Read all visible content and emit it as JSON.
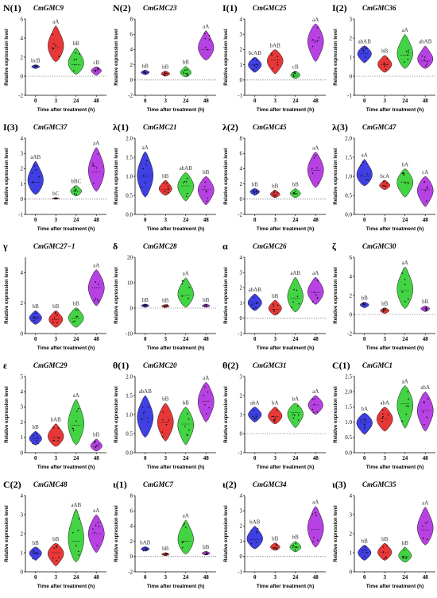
{
  "chart_data": [
    {
      "type": "violin",
      "panel": "N(1)",
      "gene": "CmGMC9",
      "ylim": [
        -2,
        6
      ],
      "yticks": [
        -2,
        0,
        2,
        4,
        6
      ],
      "x": [
        "0",
        "3",
        "24",
        "48"
      ],
      "xlabel": "Time after treatment (h)",
      "ylabel": "Relative expression level",
      "medians": [
        1.0,
        3.0,
        1.2,
        0.6
      ],
      "ranges": [
        [
          0.8,
          1.2
        ],
        [
          1.5,
          5.3
        ],
        [
          0.2,
          3.0
        ],
        [
          0.1,
          1.0
        ]
      ],
      "letters": [
        "bcB",
        "aA",
        "bB",
        "cB"
      ]
    },
    {
      "type": "violin",
      "panel": "N(2)",
      "gene": "CmGMC23",
      "ylim": [
        -2,
        8
      ],
      "yticks": [
        -2,
        0,
        2,
        4,
        6,
        8
      ],
      "x": [
        "0",
        "3",
        "24",
        "48"
      ],
      "xlabel": "Time after treatment (h)",
      "ylabel": "Relative expression level",
      "medians": [
        1.0,
        0.8,
        0.9,
        4.0
      ],
      "ranges": [
        [
          0.7,
          1.3
        ],
        [
          0.5,
          1.2
        ],
        [
          0.4,
          1.8
        ],
        [
          2.6,
          6.5
        ]
      ],
      "letters": [
        "bB",
        "bB",
        "bB",
        "aA"
      ]
    },
    {
      "type": "violin",
      "panel": "I(1)",
      "gene": "CmGMC25",
      "ylim": [
        -1,
        4
      ],
      "yticks": [
        -1,
        0,
        1,
        2,
        3,
        4
      ],
      "x": [
        "0",
        "3",
        "24",
        "48"
      ],
      "xlabel": "Time after treatment (h)",
      "ylabel": "Relative expression level",
      "medians": [
        1.0,
        1.3,
        0.3,
        2.6
      ],
      "ranges": [
        [
          0.5,
          1.5
        ],
        [
          0.4,
          2.0
        ],
        [
          0.1,
          0.6
        ],
        [
          1.2,
          3.7
        ]
      ],
      "letters": [
        "bcAB",
        "bAB",
        "cB",
        "aA"
      ]
    },
    {
      "type": "violin",
      "panel": "I(2)",
      "gene": "CmGMC36",
      "ylim": [
        -1,
        3
      ],
      "yticks": [
        -1,
        0,
        1,
        2,
        3
      ],
      "x": [
        "0",
        "3",
        "24",
        "48"
      ],
      "xlabel": "Time after treatment (h)",
      "ylabel": "Relative expression level",
      "medians": [
        1.2,
        0.6,
        1.1,
        0.8
      ],
      "ranges": [
        [
          0.7,
          1.6
        ],
        [
          0.2,
          1.1
        ],
        [
          0.4,
          2.2
        ],
        [
          0.4,
          1.6
        ]
      ],
      "letters": [
        "abAB",
        "bB",
        "aA",
        "abAB"
      ]
    },
    {
      "type": "violin",
      "panel": "I(3)",
      "gene": "CmGMC37",
      "ylim": [
        -1,
        4
      ],
      "yticks": [
        -1,
        0,
        1,
        2,
        3,
        4
      ],
      "x": [
        "0",
        "3",
        "24",
        "48"
      ],
      "xlabel": "Time after treatment (h)",
      "ylabel": "Relative expression level",
      "medians": [
        1.1,
        0.05,
        0.5,
        1.8
      ],
      "ranges": [
        [
          0.3,
          2.5
        ],
        [
          0,
          0.1
        ],
        [
          0.2,
          0.9
        ],
        [
          0.5,
          3.4
        ]
      ],
      "letters": [
        "aAB",
        "bC",
        "bBC",
        "aA"
      ]
    },
    {
      "type": "violin",
      "panel": "λ(1)",
      "gene": "CmGMC21",
      "ylim": [
        0,
        2.0
      ],
      "yticks": [
        "0.0",
        "0.5",
        "1.0",
        "1.5",
        "2.0"
      ],
      "x": [
        "0",
        "3",
        "24",
        "48"
      ],
      "xlabel": "Time after treatment (h)",
      "ylabel": "Relative expression level",
      "medians": [
        1.0,
        0.65,
        0.75,
        0.65
      ],
      "ranges": [
        [
          0.45,
          1.65
        ],
        [
          0.5,
          0.9
        ],
        [
          0.35,
          1.1
        ],
        [
          0.25,
          1.0
        ]
      ],
      "letters": [
        "aA",
        "bB",
        "abAB",
        "bB"
      ]
    },
    {
      "type": "violin",
      "panel": "λ(2)",
      "gene": "CmGMC45",
      "ylim": [
        -2,
        8
      ],
      "yticks": [
        -2,
        0,
        2,
        4,
        6,
        8
      ],
      "x": [
        "0",
        "3",
        "24",
        "48"
      ],
      "xlabel": "Time after treatment (h)",
      "ylabel": "Relative expression level",
      "medians": [
        1.0,
        0.6,
        0.7,
        3.8
      ],
      "ranges": [
        [
          0.5,
          1.4
        ],
        [
          0.2,
          1.2
        ],
        [
          0.2,
          1.4
        ],
        [
          1.5,
          6.2
        ]
      ],
      "letters": [
        "bB",
        "bB",
        "bB",
        "aA"
      ]
    },
    {
      "type": "violin",
      "panel": "λ(3)",
      "gene": "CmGMC47",
      "ylim": [
        0,
        2.0
      ],
      "yticks": [
        "0.0",
        "0.5",
        "1.0",
        "1.5",
        "2.0"
      ],
      "x": [
        "0",
        "3",
        "24",
        "48"
      ],
      "xlabel": "Time after treatment (h)",
      "ylabel": "Relative expression level",
      "medians": [
        1.0,
        0.75,
        0.85,
        0.65
      ],
      "ranges": [
        [
          0.75,
          1.45
        ],
        [
          0.65,
          0.9
        ],
        [
          0.45,
          1.2
        ],
        [
          0.2,
          1.0
        ]
      ],
      "letters": [
        "aA",
        "bcA",
        "bA",
        "cA"
      ]
    },
    {
      "type": "violin",
      "panel": "γ",
      "gene": "CmGMC27−1",
      "ylim": [
        0,
        5
      ],
      "yticks": [
        0,
        2,
        4
      ],
      "x": [
        "0",
        "3",
        "24",
        "48"
      ],
      "xlabel": "Time after treatment (h)",
      "ylabel": "Relative expression level",
      "medians": [
        1.0,
        0.9,
        1.0,
        3.0
      ],
      "ranges": [
        [
          0.6,
          1.5
        ],
        [
          0.4,
          1.5
        ],
        [
          0.4,
          1.7
        ],
        [
          1.8,
          4.2
        ]
      ],
      "letters": [
        "bB",
        "bB",
        "bB",
        "aA"
      ]
    },
    {
      "type": "violin",
      "panel": "δ",
      "gene": "CmGMC28",
      "ylim": [
        -10,
        20
      ],
      "yticks": [
        -10,
        0,
        10,
        20
      ],
      "x": [
        "0",
        "3",
        "24",
        "48"
      ],
      "xlabel": "Time after treatment (h)",
      "ylabel": "Relative expression level",
      "medians": [
        1.0,
        0.8,
        5.0,
        0.9
      ],
      "ranges": [
        [
          0.3,
          1.6
        ],
        [
          0.2,
          1.4
        ],
        [
          0.3,
          12.0
        ],
        [
          0.3,
          1.6
        ]
      ],
      "letters": [
        "bB",
        "bB",
        "aA",
        "bB"
      ]
    },
    {
      "type": "violin",
      "panel": "α",
      "gene": "CmGMC26",
      "ylim": [
        -1,
        4
      ],
      "yticks": [
        -1,
        0,
        1,
        2,
        3,
        4
      ],
      "x": [
        "0",
        "3",
        "24",
        "48"
      ],
      "xlabel": "Time after treatment (h)",
      "ylabel": "Relative expression level",
      "medians": [
        1.0,
        0.6,
        1.3,
        1.7
      ],
      "ranges": [
        [
          0.5,
          1.6
        ],
        [
          0.2,
          1.2
        ],
        [
          0.4,
          2.7
        ],
        [
          0.9,
          2.7
        ]
      ],
      "letters": [
        "abAB",
        "bB",
        "aAB",
        "aA"
      ]
    },
    {
      "type": "violin",
      "panel": "ζ",
      "gene": "CmGMC30",
      "ylim": [
        -2,
        6
      ],
      "yticks": [
        -2,
        0,
        2,
        4,
        6
      ],
      "x": [
        "0",
        "3",
        "24",
        "48"
      ],
      "xlabel": "Time after treatment (h)",
      "ylabel": "Relative expression level",
      "medians": [
        1.0,
        0.4,
        2.5,
        0.6
      ],
      "ranges": [
        [
          0.7,
          1.3
        ],
        [
          0.1,
          0.7
        ],
        [
          0.6,
          5.0
        ],
        [
          0.3,
          0.9
        ]
      ],
      "letters": [
        "bB",
        "bB",
        "aA",
        "bB"
      ]
    },
    {
      "type": "violin",
      "panel": "ε",
      "gene": "CmGMC29",
      "ylim": [
        0,
        5
      ],
      "yticks": [
        0,
        1,
        2,
        3,
        4,
        5
      ],
      "x": [
        "0",
        "3",
        "24",
        "48"
      ],
      "xlabel": "Time after treatment (h)",
      "ylabel": "Relative expression level",
      "medians": [
        0.9,
        1.0,
        1.8,
        0.4
      ],
      "ranges": [
        [
          0.5,
          1.4
        ],
        [
          0.4,
          1.9
        ],
        [
          0.5,
          3.5
        ],
        [
          0.1,
          0.9
        ]
      ],
      "letters": [
        "bB",
        "bAB",
        "aA",
        "bB"
      ]
    },
    {
      "type": "violin",
      "panel": "θ(1)",
      "gene": "CmGMC20",
      "ylim": [
        0,
        2.0
      ],
      "yticks": [
        "0.0",
        "0.5",
        "1.0",
        "1.5",
        "2.0"
      ],
      "x": [
        "0",
        "3",
        "24",
        "48"
      ],
      "xlabel": "Time after treatment (h)",
      "ylabel": "Relative expression level",
      "medians": [
        0.9,
        0.8,
        0.75,
        1.35
      ],
      "ranges": [
        [
          0.4,
          1.5
        ],
        [
          0.3,
          1.3
        ],
        [
          0.2,
          1.2
        ],
        [
          0.8,
          1.85
        ]
      ],
      "letters": [
        "abAB",
        "bB",
        "bB",
        "aA"
      ]
    },
    {
      "type": "violin",
      "panel": "θ(2)",
      "gene": "CmGMC31",
      "ylim": [
        -1,
        3
      ],
      "yticks": [
        -1,
        0,
        1,
        2,
        3
      ],
      "x": [
        "0",
        "3",
        "24",
        "48"
      ],
      "xlabel": "Time after treatment (h)",
      "ylabel": "Relative expression level",
      "medians": [
        1.0,
        0.9,
        1.1,
        1.5
      ],
      "ranges": [
        [
          0.6,
          1.4
        ],
        [
          0.5,
          1.4
        ],
        [
          0.3,
          1.6
        ],
        [
          1.0,
          2.0
        ]
      ],
      "letters": [
        "abA",
        "bA",
        "bA",
        "aA"
      ]
    },
    {
      "type": "violin",
      "panel": "C(1)",
      "gene": "CmGMC1",
      "ylim": [
        0,
        2.5
      ],
      "yticks": [
        "0.0",
        "0.5",
        "1.0",
        "1.5",
        "2.0",
        "2.5"
      ],
      "x": [
        "0",
        "3",
        "24",
        "48"
      ],
      "xlabel": "Time after treatment (h)",
      "ylabel": "Relative expression level",
      "medians": [
        1.0,
        1.1,
        1.6,
        1.4
      ],
      "ranges": [
        [
          0.6,
          1.3
        ],
        [
          0.7,
          1.5
        ],
        [
          0.8,
          2.2
        ],
        [
          0.7,
          2.0
        ]
      ],
      "letters": [
        "bA",
        "abA",
        "aA",
        "abA"
      ]
    },
    {
      "type": "violin",
      "panel": "C(2)",
      "gene": "CmGMC48",
      "ylim": [
        0,
        4
      ],
      "yticks": [
        0,
        1,
        2,
        3,
        4
      ],
      "x": [
        "0",
        "3",
        "24",
        "48"
      ],
      "xlabel": "Time after treatment (h)",
      "ylabel": "Relative expression level",
      "medians": [
        1.0,
        1.0,
        1.6,
        2.0
      ],
      "ranges": [
        [
          0.6,
          1.3
        ],
        [
          0.3,
          1.5
        ],
        [
          0.5,
          3.3
        ],
        [
          1.0,
          3.0
        ]
      ],
      "letters": [
        "bB",
        "bB",
        "aAB",
        "aA"
      ]
    },
    {
      "type": "violin",
      "panel": "ι(1)",
      "gene": "CmGMC7",
      "ylim": [
        -2,
        8
      ],
      "yticks": [
        -2,
        0,
        2,
        4,
        6,
        8
      ],
      "x": [
        "0",
        "3",
        "24",
        "48"
      ],
      "xlabel": "Time after treatment (h)",
      "ylabel": "Relative expression level",
      "medians": [
        1.0,
        0.3,
        2.0,
        0.4
      ],
      "ranges": [
        [
          0.7,
          1.3
        ],
        [
          0.1,
          0.5
        ],
        [
          0.3,
          4.8
        ],
        [
          0.2,
          0.7
        ]
      ],
      "letters": [
        "bAB",
        "bB",
        "aA",
        "bB"
      ]
    },
    {
      "type": "violin",
      "panel": "ι(2)",
      "gene": "CmGMC34",
      "ylim": [
        -1,
        4
      ],
      "yticks": [
        -1,
        0,
        1,
        2,
        3,
        4
      ],
      "x": [
        "0",
        "3",
        "24",
        "48"
      ],
      "xlabel": "Time after treatment (h)",
      "ylabel": "Relative expression level",
      "medians": [
        1.1,
        0.6,
        0.6,
        1.8
      ],
      "ranges": [
        [
          0.5,
          2.0
        ],
        [
          0.4,
          0.9
        ],
        [
          0.3,
          1.0
        ],
        [
          0.6,
          3.3
        ]
      ],
      "letters": [
        "bAB",
        "bB",
        "bB",
        "aA"
      ]
    },
    {
      "type": "violin",
      "panel": "ι(3)",
      "gene": "CmGMC35",
      "ylim": [
        0,
        4
      ],
      "yticks": [
        0,
        1,
        2,
        3,
        4
      ],
      "x": [
        "0",
        "3",
        "24",
        "48"
      ],
      "xlabel": "Time after treatment (h)",
      "ylabel": "Relative expression level",
      "medians": [
        1.0,
        1.0,
        0.8,
        2.2
      ],
      "ranges": [
        [
          0.6,
          1.4
        ],
        [
          0.6,
          1.5
        ],
        [
          0.5,
          1.3
        ],
        [
          1.4,
          3.4
        ]
      ],
      "letters": [
        "bB",
        "bB",
        "bB",
        "aA"
      ]
    }
  ],
  "colors": [
    "#2a2ae0",
    "#e52121",
    "#2fcf2f",
    "#b02ce0"
  ]
}
